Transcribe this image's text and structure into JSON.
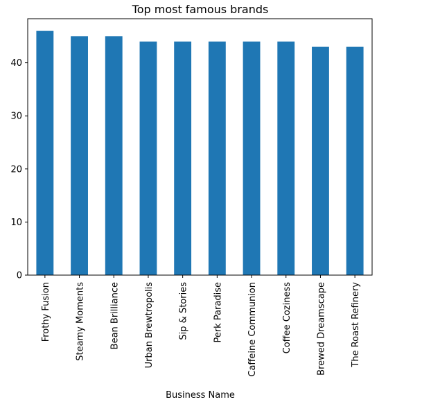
{
  "chart_data": {
    "type": "bar",
    "title": "Top most famous brands",
    "xlabel": "Business Name",
    "ylabel": "",
    "categories": [
      "Frothy Fusion",
      "Steamy Moments",
      "Bean Brilliance",
      "Urban Brewtropolis",
      "Sip & Stories",
      "Perk Paradise",
      "Caffeine Communion",
      "Coffee Coziness",
      "Brewed Dreamscape",
      "The Roast Refinery"
    ],
    "values": [
      46,
      45,
      45,
      44,
      44,
      44,
      44,
      44,
      43,
      43
    ],
    "ylim": [
      0,
      48.3
    ],
    "yticks": [
      0,
      10,
      20,
      30,
      40
    ],
    "bar_color": "#1f77b4",
    "grid": false,
    "legend": "none"
  }
}
